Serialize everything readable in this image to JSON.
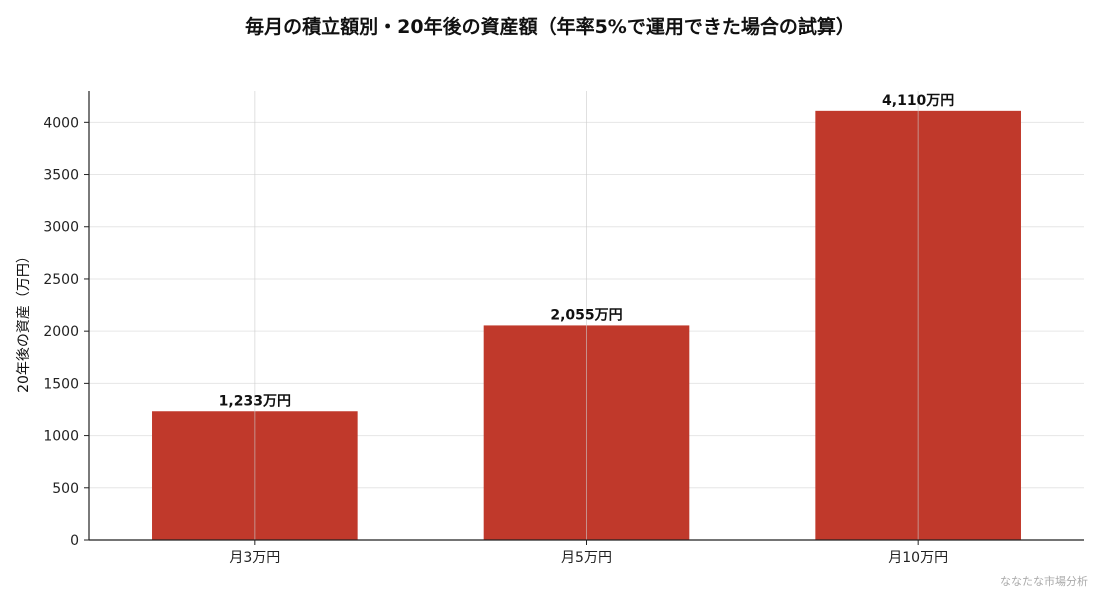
{
  "chart_data": {
    "type": "bar",
    "title": "毎月の積立額別・20年後の資産額（年率5%で運用できた場合の試算）",
    "xlabel": "",
    "ylabel": "20年後の資産（万円）",
    "categories": [
      "月3万円",
      "月5万円",
      "月10万円"
    ],
    "values": [
      1233,
      2055,
      4110
    ],
    "data_labels": [
      "1,233万円",
      "2,055万円",
      "4,110万円"
    ],
    "ylim": [
      0,
      4300
    ],
    "yticks": [
      "0",
      "500",
      "1000",
      "1500",
      "2000",
      "2500",
      "3000",
      "3500",
      "4000"
    ],
    "grid": true,
    "bar_color": "#c0392b"
  },
  "watermark": "ななたな市場分析"
}
